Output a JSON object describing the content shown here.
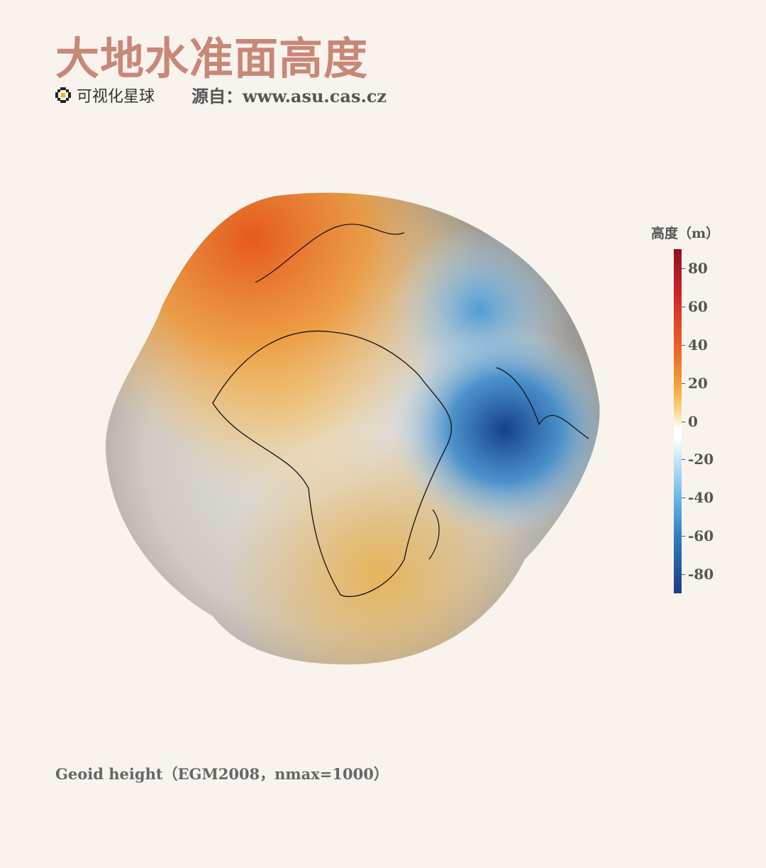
{
  "title": "大地水准面高度",
  "brand": {
    "name": "可视化星球",
    "icon": "pixel-flower-logo"
  },
  "source": "源自：www.asu.cas.cz",
  "caption": "Geoid height（EGM2008，nmax=1000）",
  "colorbar": {
    "title": "高度（m）",
    "range": [
      -90,
      90
    ],
    "ticks": [
      {
        "value": 80,
        "label": "80"
      },
      {
        "value": 60,
        "label": "60"
      },
      {
        "value": 40,
        "label": "40"
      },
      {
        "value": 20,
        "label": "20"
      },
      {
        "value": 0,
        "label": "0"
      },
      {
        "value": -20,
        "label": "-20"
      },
      {
        "value": -40,
        "label": "-40"
      },
      {
        "value": -60,
        "label": "-60"
      },
      {
        "value": -80,
        "label": "-80"
      }
    ],
    "colors": {
      "max": "#8a1420",
      "high": "#ea6a2a",
      "mid_high": "#f3a63a",
      "zero": "#ffffff",
      "low": "#6cb8e6",
      "min": "#1d3c7e"
    }
  }
}
